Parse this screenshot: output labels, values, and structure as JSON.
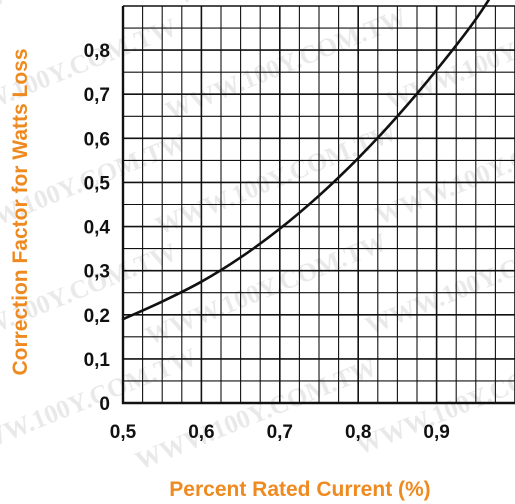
{
  "watermark_text": "WWW.100Y.COM.TW",
  "colors": {
    "axis_title": "#ee8a1f",
    "grid": "#111111",
    "curve": "#111111",
    "watermark": "#d8d8d8"
  },
  "chart_data": {
    "type": "line",
    "xlabel": "Percent Rated Current (%)",
    "ylabel": "Correction Factor for Watts Loss",
    "xlim": [
      0.5,
      1.0
    ],
    "ylim": [
      0,
      0.9
    ],
    "x_ticks": [
      {
        "value": 0.5,
        "label": "0,5"
      },
      {
        "value": 0.6,
        "label": "0,6"
      },
      {
        "value": 0.7,
        "label": "0,7"
      },
      {
        "value": 0.8,
        "label": "0,8"
      },
      {
        "value": 0.9,
        "label": "0,9"
      }
    ],
    "y_ticks": [
      {
        "value": 0.0,
        "label": "0"
      },
      {
        "value": 0.1,
        "label": "0,1"
      },
      {
        "value": 0.2,
        "label": "0,2"
      },
      {
        "value": 0.3,
        "label": "0,3"
      },
      {
        "value": 0.4,
        "label": "0,4"
      },
      {
        "value": 0.5,
        "label": "0,5"
      },
      {
        "value": 0.6,
        "label": "0,6"
      },
      {
        "value": 0.7,
        "label": "0,7"
      },
      {
        "value": 0.8,
        "label": "0,8"
      }
    ],
    "grid": true,
    "grid_minor_x_step": 0.025,
    "grid_minor_y_step": 0.05,
    "legend": "none",
    "series": [
      {
        "x": [
          0.5,
          0.55,
          0.6,
          0.65,
          0.7,
          0.75,
          0.8,
          0.85,
          0.9,
          0.95,
          0.99
        ],
        "y": [
          0.19,
          0.23,
          0.275,
          0.33,
          0.395,
          0.47,
          0.555,
          0.65,
          0.755,
          0.87,
          0.98
        ]
      }
    ]
  }
}
